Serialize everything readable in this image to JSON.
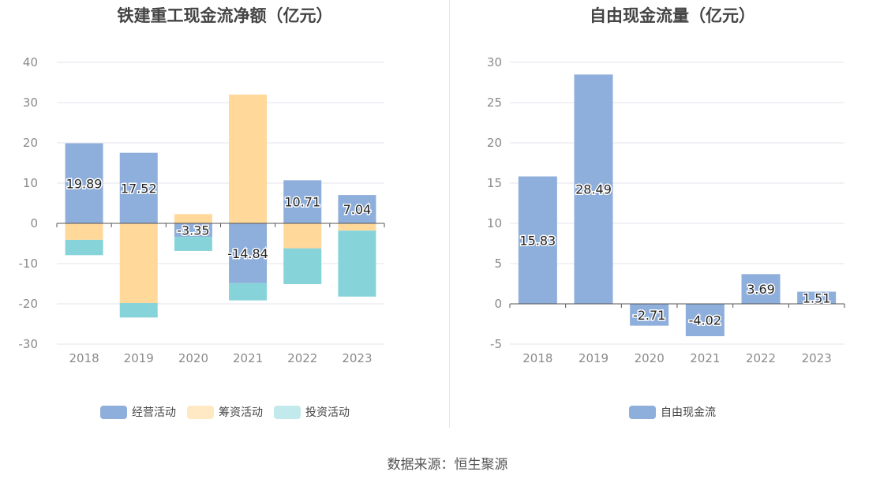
{
  "source_text": "数据来源：恒生聚源",
  "chart_data": [
    {
      "type": "bar",
      "stacked": true,
      "title": "铁建重工现金流净额（亿元）",
      "categories": [
        "2018",
        "2019",
        "2020",
        "2021",
        "2022",
        "2023"
      ],
      "ylim": [
        -30,
        40
      ],
      "yticks": [
        40,
        30,
        20,
        10,
        0,
        -10,
        -20,
        -30
      ],
      "grid": true,
      "legend_position": "bottom",
      "series": [
        {
          "name": "经营活动",
          "color": "#8eaedb",
          "legend_color": "#8eaedb",
          "values": [
            19.89,
            17.52,
            -3.35,
            -14.84,
            10.71,
            7.04
          ],
          "labels": [
            "19.89",
            "17.52",
            "-3.35",
            "-14.84",
            "10.71",
            "7.04"
          ]
        },
        {
          "name": "筹资活动",
          "color": "#ffd89a",
          "legend_color": "#ffe8c4",
          "values": [
            -4.1,
            -19.8,
            2.3,
            32.0,
            -6.2,
            -1.8
          ]
        },
        {
          "name": "投资活动",
          "color": "#86d4da",
          "legend_color": "#c2eaec",
          "values": [
            -3.8,
            -3.6,
            -3.5,
            -4.3,
            -8.9,
            -16.4
          ]
        }
      ]
    },
    {
      "type": "bar",
      "title": "自由现金流量（亿元）",
      "categories": [
        "2018",
        "2019",
        "2020",
        "2021",
        "2022",
        "2023"
      ],
      "ylim": [
        -5,
        30
      ],
      "yticks": [
        30,
        25,
        20,
        15,
        10,
        5,
        0,
        -5
      ],
      "grid": true,
      "legend_position": "bottom",
      "series": [
        {
          "name": "自由现金流",
          "color": "#8eaedb",
          "legend_color": "#8eaedb",
          "values": [
            15.83,
            28.49,
            -2.71,
            -4.02,
            3.69,
            1.51
          ],
          "labels": [
            "15.83",
            "28.49",
            "-2.71",
            "-4.02",
            "3.69",
            "1.51"
          ]
        }
      ]
    }
  ]
}
